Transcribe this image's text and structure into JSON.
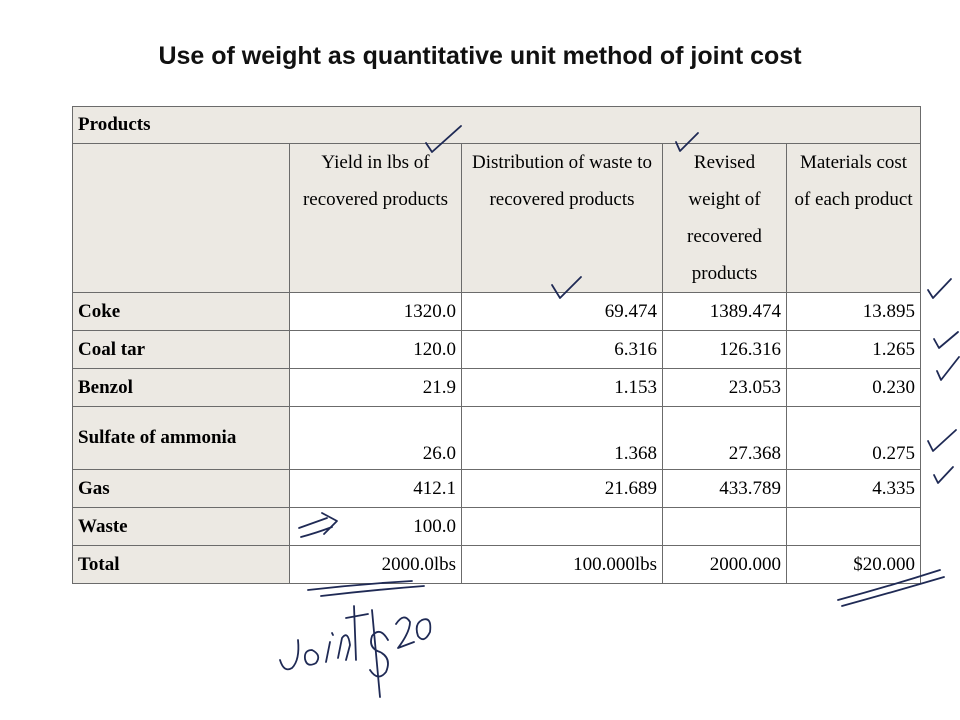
{
  "title": "Use of weight as quantitative unit method of joint cost",
  "table": {
    "section_label": "Products",
    "headers": [
      "",
      "Yield in lbs of recovered products",
      "Distribution of waste to recovered products",
      "Revised weight of recovered products",
      "Materials cost of each product"
    ],
    "rows": [
      {
        "label": "Coke",
        "yield": "1320.0",
        "distribution": "69.474",
        "revised": "1389.474",
        "cost": "13.895"
      },
      {
        "label": "Coal tar",
        "yield": "120.0",
        "distribution": "6.316",
        "revised": "126.316",
        "cost": "1.265"
      },
      {
        "label": "Benzol",
        "yield": "21.9",
        "distribution": "1.153",
        "revised": "23.053",
        "cost": "0.230"
      },
      {
        "label": "Sulfate of ammonia",
        "yield": "26.0",
        "distribution": "1.368",
        "revised": "27.368",
        "cost": "0.275"
      },
      {
        "label": "Gas",
        "yield": "412.1",
        "distribution": "21.689",
        "revised": "433.789",
        "cost": "4.335"
      },
      {
        "label": "Waste",
        "yield": "100.0",
        "distribution": "",
        "revised": "",
        "cost": ""
      },
      {
        "label": "Total",
        "yield": "2000.0lbs",
        "distribution": "100.000lbs",
        "revised": "2000.000",
        "cost": "$20.000"
      }
    ]
  },
  "annotation": {
    "handwritten_text": "Joint $20",
    "ink_color": "#1f2a55"
  }
}
